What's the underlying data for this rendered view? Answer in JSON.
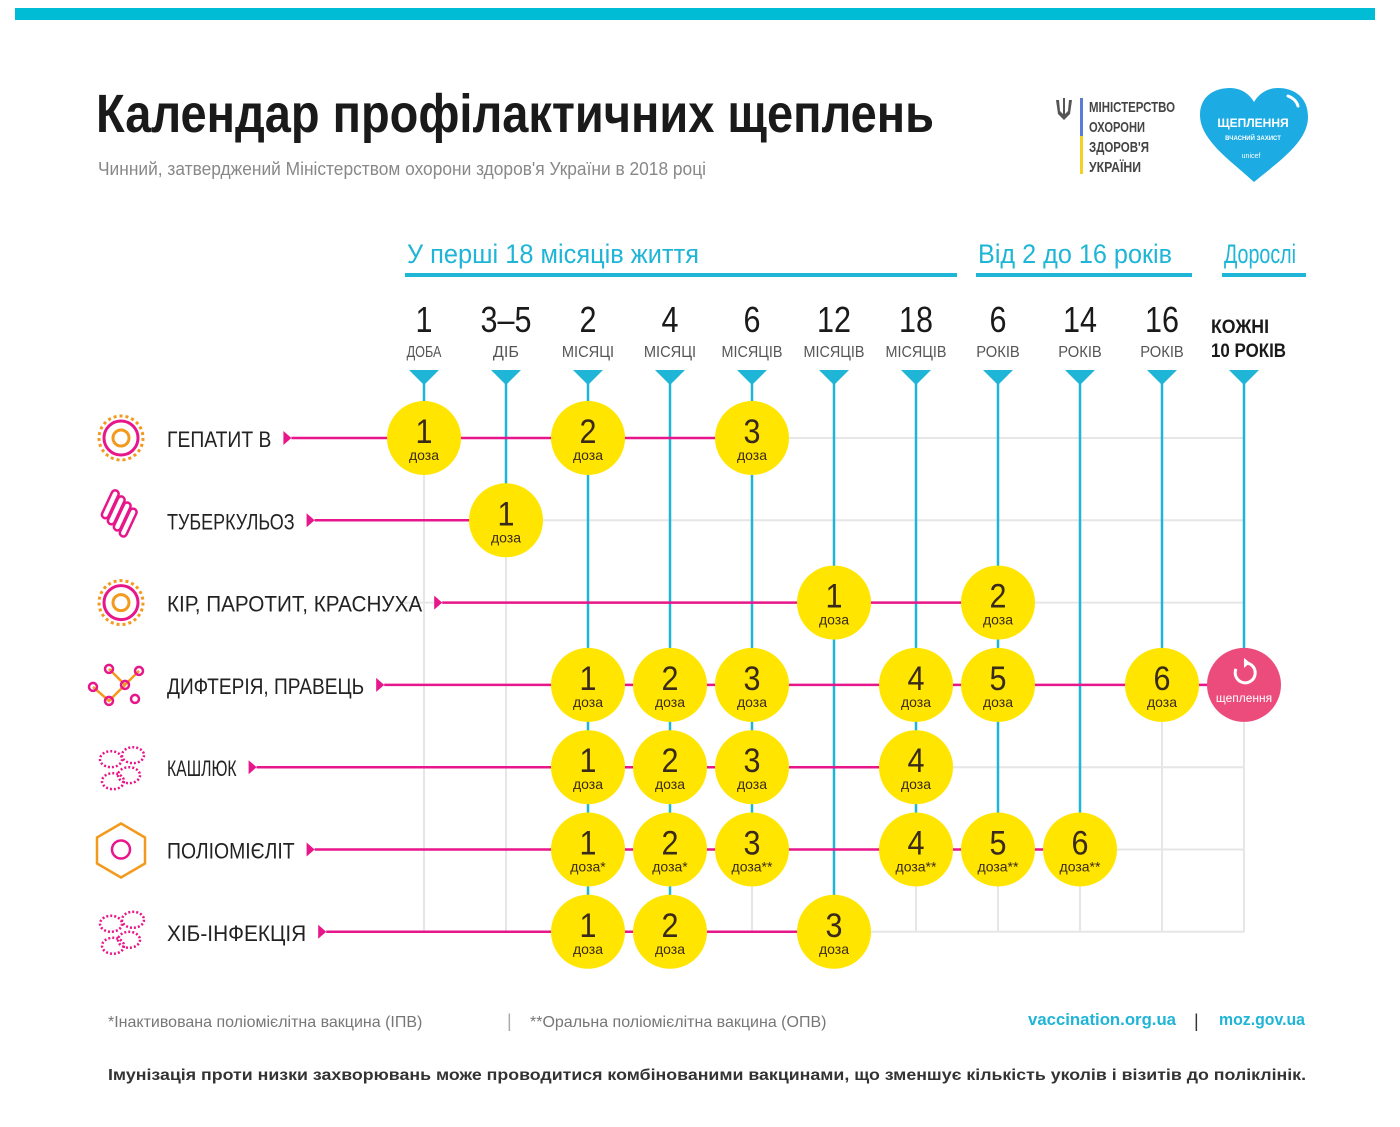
{
  "header": {
    "title": "Календар профілактичних щеплень",
    "subtitle": "Чинний, затверджений Міністерством охорони здоров'я України в 2018 році",
    "ministry_logo": [
      "МІНІСТЕРСТВО",
      "ОХОРОНИ",
      "ЗДОРОВ'Я",
      "УКРАЇНИ"
    ],
    "unicef_logo": {
      "line1": "ЩЕПЛЕННЯ",
      "line2": "ВЧАСНИЙ ЗАХИСТ",
      "line3": "unicef"
    }
  },
  "colors": {
    "top_bar": "#00BCD4",
    "accent_cyan": "#1FB5D6",
    "row_line": "#E8168B",
    "dose": "#FFE500",
    "dose_text": "#3a2a1a",
    "booster": "#EC4C7C",
    "grid": "#e6e6e6"
  },
  "sections": [
    {
      "label": "У перші 18 місяців життя",
      "from": 0,
      "to": 6
    },
    {
      "label": "Від 2 до 16 років",
      "from": 7,
      "to": 9
    },
    {
      "label": "Дорослі",
      "from": 10,
      "to": 10
    }
  ],
  "columns": [
    {
      "num": "1",
      "unit": "ДОБА"
    },
    {
      "num": "3–5",
      "unit": "ДІБ"
    },
    {
      "num": "2",
      "unit": "МІСЯЦІ"
    },
    {
      "num": "4",
      "unit": "МІСЯЦІ"
    },
    {
      "num": "6",
      "unit": "МІСЯЦІВ"
    },
    {
      "num": "12",
      "unit": "МІСЯЦІВ"
    },
    {
      "num": "18",
      "unit": "МІСЯЦІВ"
    },
    {
      "num": "6",
      "unit": "РОКІВ"
    },
    {
      "num": "14",
      "unit": "РОКІВ"
    },
    {
      "num": "16",
      "unit": "РОКІВ"
    },
    {
      "num": "КОЖНІ",
      "unit": "10 РОКІВ"
    }
  ],
  "rows": [
    {
      "label": "ГЕПАТИТ В",
      "icon": "hepatitis-virus-icon",
      "doses": [
        {
          "col": 0,
          "n": "1",
          "word": "доза"
        },
        {
          "col": 2,
          "n": "2",
          "word": "доза"
        },
        {
          "col": 4,
          "n": "3",
          "word": "доза"
        }
      ]
    },
    {
      "label": "ТУБЕРКУЛЬОЗ",
      "icon": "tuberculosis-bacteria-icon",
      "doses": [
        {
          "col": 1,
          "n": "1",
          "word": "доза"
        }
      ]
    },
    {
      "label": "КІР, ПАРОТИТ, КРАСНУХА",
      "icon": "measles-virus-icon",
      "doses": [
        {
          "col": 5,
          "n": "1",
          "word": "доза"
        },
        {
          "col": 7,
          "n": "2",
          "word": "доза"
        }
      ]
    },
    {
      "label": "ДИФТЕРІЯ, ПРАВЕЦЬ",
      "icon": "diphtheria-bacteria-icon",
      "doses": [
        {
          "col": 2,
          "n": "1",
          "word": "доза"
        },
        {
          "col": 3,
          "n": "2",
          "word": "доза"
        },
        {
          "col": 4,
          "n": "3",
          "word": "доза"
        },
        {
          "col": 6,
          "n": "4",
          "word": "доза"
        },
        {
          "col": 7,
          "n": "5",
          "word": "доза"
        },
        {
          "col": 9,
          "n": "6",
          "word": "доза"
        },
        {
          "col": 10,
          "n": "",
          "word": "щеплення",
          "booster": true
        }
      ]
    },
    {
      "label": "КАШЛЮК",
      "icon": "pertussis-bacteria-icon",
      "doses": [
        {
          "col": 2,
          "n": "1",
          "word": "доза"
        },
        {
          "col": 3,
          "n": "2",
          "word": "доза"
        },
        {
          "col": 4,
          "n": "3",
          "word": "доза"
        },
        {
          "col": 6,
          "n": "4",
          "word": "доза"
        }
      ]
    },
    {
      "label": "ПОЛІОМІЄЛІТ",
      "icon": "polio-virus-icon",
      "doses": [
        {
          "col": 2,
          "n": "1",
          "word": "доза*"
        },
        {
          "col": 3,
          "n": "2",
          "word": "доза*"
        },
        {
          "col": 4,
          "n": "3",
          "word": "доза**"
        },
        {
          "col": 6,
          "n": "4",
          "word": "доза**"
        },
        {
          "col": 7,
          "n": "5",
          "word": "доза**"
        },
        {
          "col": 8,
          "n": "6",
          "word": "доза**"
        }
      ]
    },
    {
      "label": "ХІБ-ІНФЕКЦІЯ",
      "icon": "hib-bacteria-icon",
      "doses": [
        {
          "col": 2,
          "n": "1",
          "word": "доза"
        },
        {
          "col": 3,
          "n": "2",
          "word": "доза"
        },
        {
          "col": 5,
          "n": "3",
          "word": "доза"
        }
      ]
    }
  ],
  "footer": {
    "note_ipv": "*Інактивована поліомієлітна вакцина (ІПВ)",
    "separator": "|",
    "note_opv": "**Оральна поліомієлітна вакцина (ОПВ)",
    "link1": "vaccination.org.ua",
    "link2": "moz.gov.ua",
    "bottom_note": "Імунізація проти низки захворювань може проводитися комбінованими вакцинами, що зменшує кількість уколів і візитів до поліклінік."
  }
}
